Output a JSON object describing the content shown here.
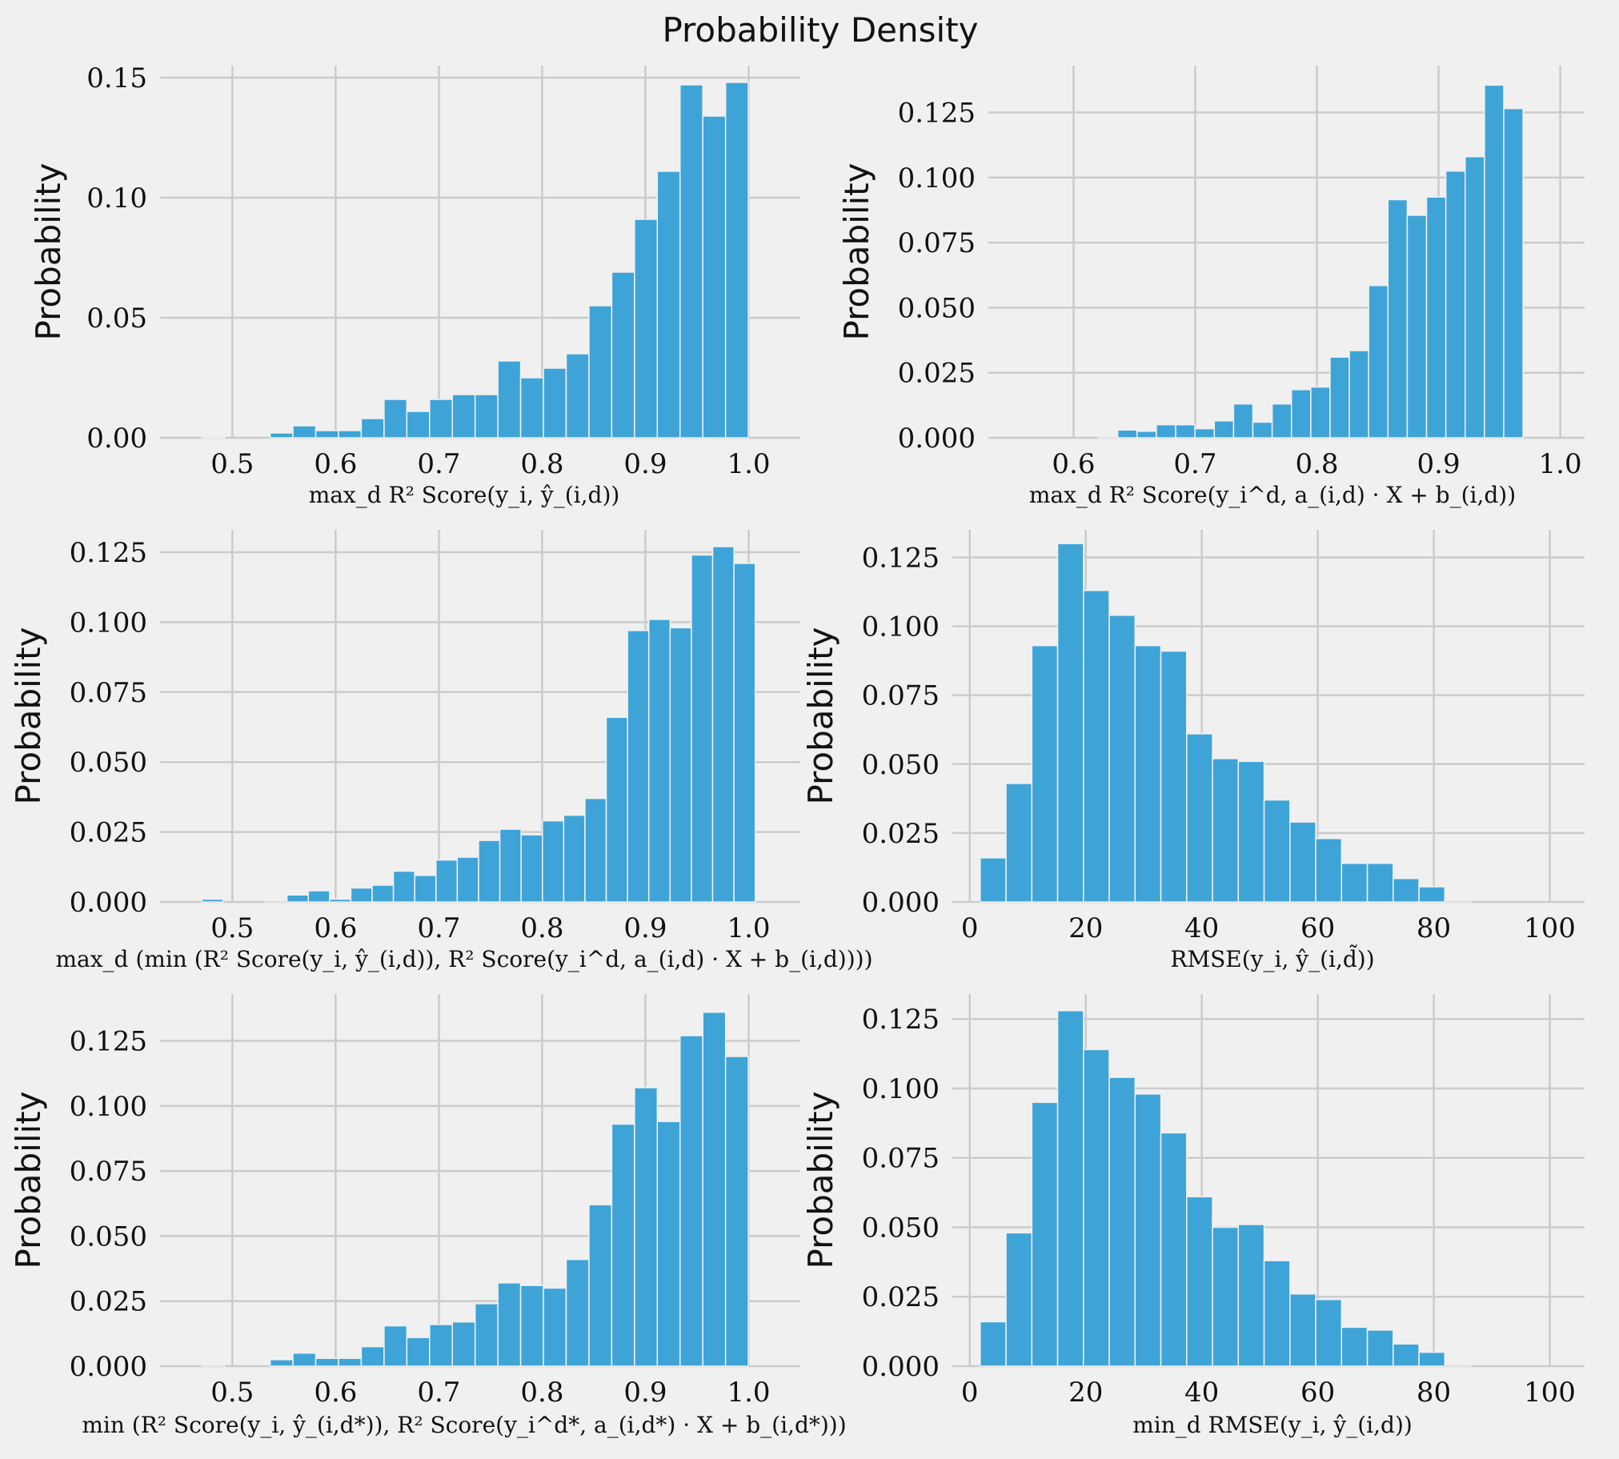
{
  "figure": {
    "title": "Probability Density",
    "colors": {
      "background": "#f0f0f0",
      "bar": "#3ea4d8",
      "grid": "#cbcbcb",
      "text": "#111111"
    }
  },
  "chart_data": [
    {
      "type": "bar",
      "title": "",
      "ylabel": "Probability",
      "xlabel": "max_d R² Score(y_i, ŷ_(i,d))",
      "xlim": [
        0.43,
        1.05
      ],
      "ylim": [
        0,
        0.155
      ],
      "xticks": [
        0.5,
        0.6,
        0.7,
        0.8,
        0.9,
        1.0
      ],
      "xtick_labels": [
        "0.5",
        "0.6",
        "0.7",
        "0.8",
        "0.9",
        "1.0"
      ],
      "yticks": [
        0.0,
        0.05,
        0.1,
        0.15
      ],
      "ytick_labels": [
        "0.00",
        "0.05",
        "0.10",
        "0.15"
      ],
      "bin_start": 0.4705,
      "bin_width": 0.02205,
      "values": [
        0.0005,
        0.0,
        0.0,
        0.002,
        0.005,
        0.003,
        0.003,
        0.008,
        0.016,
        0.011,
        0.016,
        0.018,
        0.018,
        0.032,
        0.025,
        0.029,
        0.035,
        0.055,
        0.069,
        0.091,
        0.111,
        0.147,
        0.134,
        0.148
      ]
    },
    {
      "type": "bar",
      "title": "",
      "ylabel": "Probability",
      "xlabel": "max_d R² Score(y_i^d, a_(i,d) · X + b_(i,d))",
      "xlim": [
        0.53,
        1.02
      ],
      "ylim": [
        0,
        0.143
      ],
      "xticks": [
        0.6,
        0.7,
        0.8,
        0.9,
        1.0
      ],
      "xtick_labels": [
        "0.6",
        "0.7",
        "0.8",
        "0.9",
        "1.0"
      ],
      "yticks": [
        0.0,
        0.025,
        0.05,
        0.075,
        0.1,
        0.125
      ],
      "ytick_labels": [
        "0.000",
        "0.025",
        "0.050",
        "0.075",
        "0.100",
        "0.125"
      ],
      "bin_start": 0.6205,
      "bin_width": 0.01586,
      "values": [
        0.0005,
        0.003,
        0.0025,
        0.005,
        0.005,
        0.0035,
        0.0065,
        0.013,
        0.006,
        0.013,
        0.0185,
        0.0195,
        0.031,
        0.0335,
        0.0585,
        0.0915,
        0.0855,
        0.0925,
        0.1025,
        0.108,
        0.1355,
        0.1265
      ]
    },
    {
      "type": "bar",
      "title": "",
      "ylabel": "Probability",
      "xlabel": "max_d (min (R² Score(y_i, ŷ_(i,d)), R² Score(y_i^d, a_(i,d) · X + b_(i,d))))",
      "xlim": [
        0.43,
        1.05
      ],
      "ylim": [
        0,
        0.133
      ],
      "xticks": [
        0.5,
        0.6,
        0.7,
        0.8,
        0.9,
        1.0
      ],
      "xtick_labels": [
        "0.5",
        "0.6",
        "0.7",
        "0.8",
        "0.9",
        "1.0"
      ],
      "yticks": [
        0.0,
        0.025,
        0.05,
        0.075,
        0.1,
        0.125
      ],
      "ytick_labels": [
        "0.000",
        "0.025",
        "0.050",
        "0.075",
        "0.100",
        "0.125"
      ],
      "bin_start": 0.4705,
      "bin_width": 0.02061,
      "values": [
        0.001,
        0.0,
        0.0,
        0.0005,
        0.0025,
        0.004,
        0.001,
        0.005,
        0.006,
        0.011,
        0.0095,
        0.015,
        0.016,
        0.022,
        0.026,
        0.024,
        0.029,
        0.031,
        0.037,
        0.066,
        0.097,
        0.101,
        0.098,
        0.124,
        0.127,
        0.121
      ]
    },
    {
      "type": "bar",
      "title": "",
      "ylabel": "Probability",
      "xlabel": "RMSE(y_i, ŷ_(i,d̃))",
      "xlim": [
        -3,
        106
      ],
      "ylim": [
        0,
        0.135
      ],
      "xticks": [
        0,
        20,
        40,
        60,
        80,
        100
      ],
      "xtick_labels": [
        "0",
        "20",
        "40",
        "60",
        "80",
        "100"
      ],
      "yticks": [
        0.0,
        0.025,
        0.05,
        0.075,
        0.1,
        0.125
      ],
      "ytick_labels": [
        "0.000",
        "0.025",
        "0.050",
        "0.075",
        "0.100",
        "0.125"
      ],
      "bin_start": 1.8,
      "bin_width": 4.45,
      "values": [
        0.016,
        0.043,
        0.093,
        0.13,
        0.113,
        0.104,
        0.093,
        0.091,
        0.061,
        0.052,
        0.051,
        0.037,
        0.029,
        0.023,
        0.014,
        0.014,
        0.0085,
        0.0055,
        0.0005
      ]
    },
    {
      "type": "bar",
      "title": "",
      "ylabel": "Probability",
      "xlabel": "min (R² Score(y_i, ŷ_(i,d*)), R² Score(y_i^d*, a_(i,d*) · X + b_(i,d*)))",
      "xlim": [
        0.43,
        1.05
      ],
      "ylim": [
        0,
        0.143
      ],
      "xticks": [
        0.5,
        0.6,
        0.7,
        0.8,
        0.9,
        1.0
      ],
      "xtick_labels": [
        "0.5",
        "0.6",
        "0.7",
        "0.8",
        "0.9",
        "1.0"
      ],
      "yticks": [
        0.0,
        0.025,
        0.05,
        0.075,
        0.1,
        0.125
      ],
      "ytick_labels": [
        "0.000",
        "0.025",
        "0.050",
        "0.075",
        "0.100",
        "0.125"
      ],
      "bin_start": 0.4705,
      "bin_width": 0.02205,
      "values": [
        0.0005,
        0.0,
        0.0,
        0.0025,
        0.005,
        0.003,
        0.003,
        0.0075,
        0.0155,
        0.011,
        0.016,
        0.017,
        0.024,
        0.032,
        0.031,
        0.03,
        0.041,
        0.062,
        0.093,
        0.107,
        0.094,
        0.127,
        0.136,
        0.119
      ]
    },
    {
      "type": "bar",
      "title": "",
      "ylabel": "Probability",
      "xlabel": "min_d RMSE(y_i, ŷ_(i,d))",
      "xlim": [
        -3,
        106
      ],
      "ylim": [
        0,
        0.134
      ],
      "xticks": [
        0,
        20,
        40,
        60,
        80,
        100
      ],
      "xtick_labels": [
        "0",
        "20",
        "40",
        "60",
        "80",
        "100"
      ],
      "yticks": [
        0.0,
        0.025,
        0.05,
        0.075,
        0.1,
        0.125
      ],
      "ytick_labels": [
        "0.000",
        "0.025",
        "0.050",
        "0.075",
        "0.100",
        "0.125"
      ],
      "bin_start": 1.8,
      "bin_width": 4.45,
      "values": [
        0.016,
        0.048,
        0.095,
        0.128,
        0.114,
        0.104,
        0.098,
        0.084,
        0.061,
        0.05,
        0.051,
        0.038,
        0.026,
        0.024,
        0.014,
        0.013,
        0.008,
        0.005,
        0.0005
      ]
    }
  ]
}
